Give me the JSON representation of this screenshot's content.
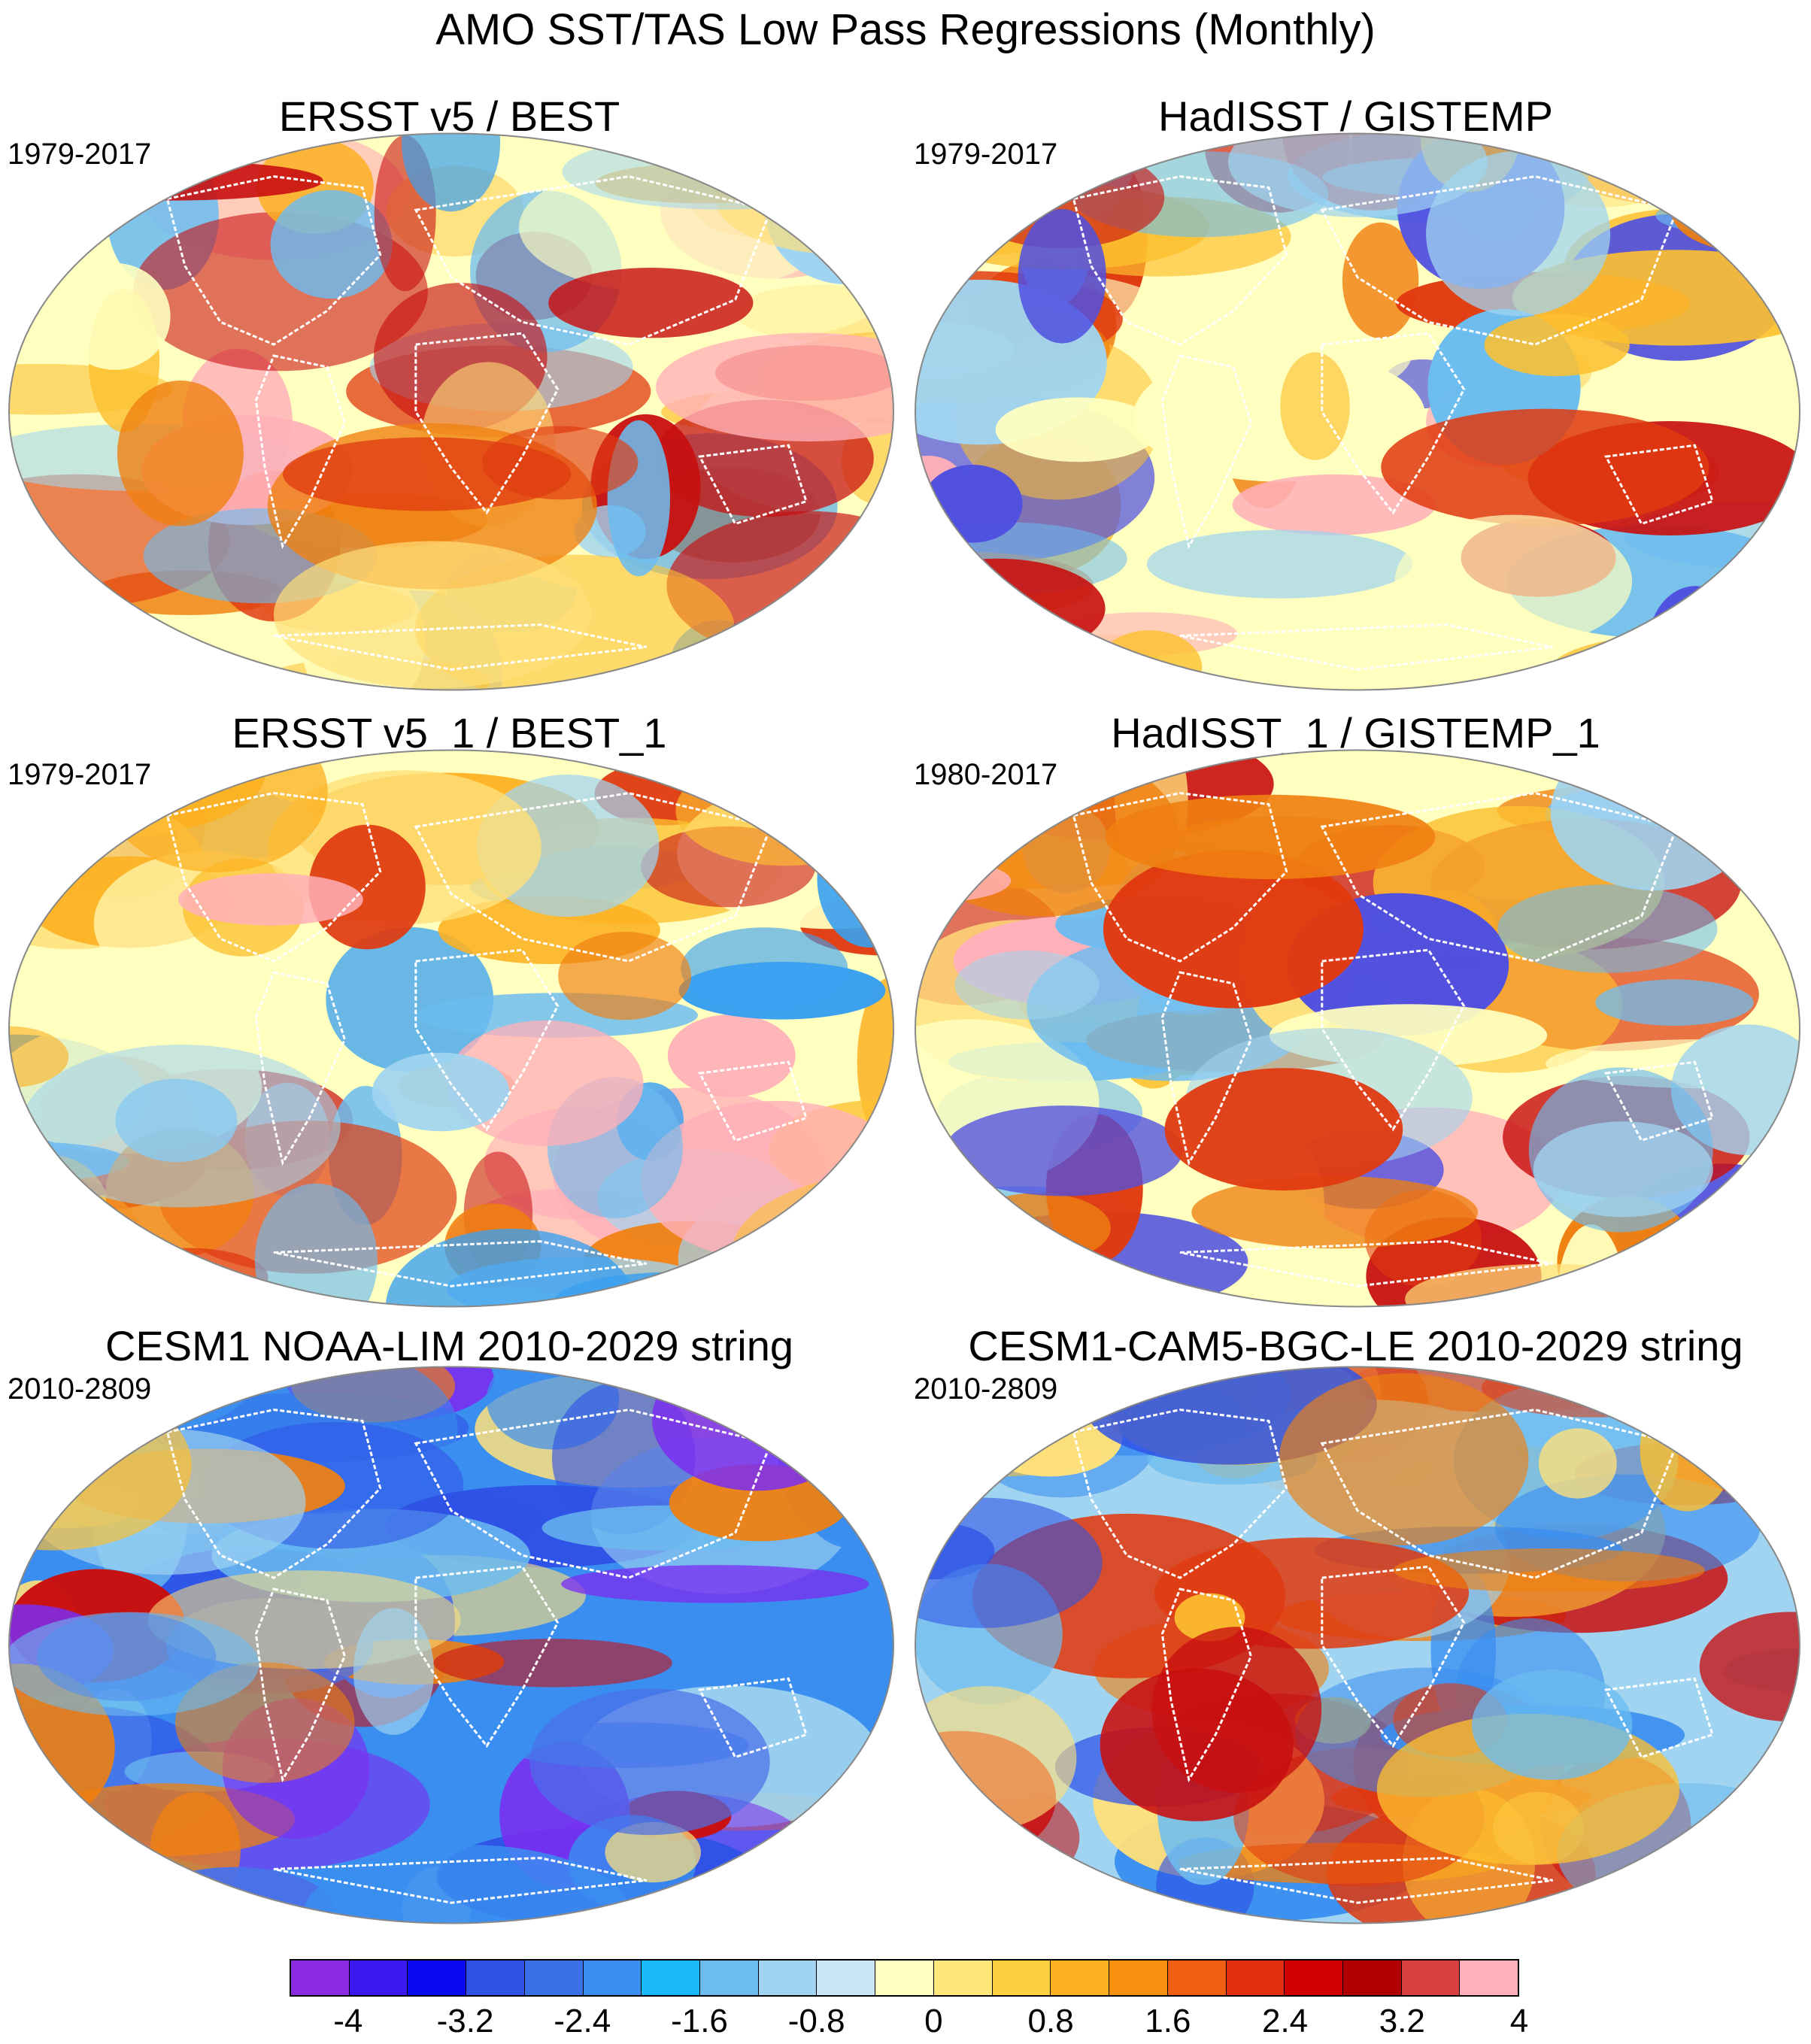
{
  "figure": {
    "title": "AMO SST/TAS Low Pass Regressions (Monthly)"
  },
  "panels": [
    {
      "title": "ERSST v5 / BEST",
      "period": "1979-2017",
      "palette": [
        "#ffffbf",
        "#ffe07a",
        "#fdc030",
        "#fdb020",
        "#f08010",
        "#e03a10",
        "#c81010",
        "#ffb0b8",
        "#a0d4f0",
        "#6cbcf0",
        "#3aa0f0",
        "#ffffff"
      ]
    },
    {
      "title": "HadISST / GISTEMP",
      "period": "1979-2017",
      "palette": [
        "#ffffbf",
        "#ffe07a",
        "#fdc030",
        "#f08010",
        "#e03a10",
        "#c81010",
        "#ffb0b8",
        "#a0d4f0",
        "#6cbcf0",
        "#5050e0",
        "#ffffff"
      ]
    },
    {
      "title": "ERSST v5_1 / BEST_1",
      "period": "1979-2017",
      "palette": [
        "#ffffbf",
        "#ffe07a",
        "#fdc030",
        "#fdb020",
        "#f08010",
        "#e03a10",
        "#c81010",
        "#ffb0b8",
        "#a0d4f0",
        "#6cbcf0",
        "#3aa0f0",
        "#ffffff"
      ]
    },
    {
      "title": "HadISST_1 / GISTEMP_1",
      "period": "1980-2017",
      "palette": [
        "#ffffbf",
        "#ffe07a",
        "#fdc030",
        "#f08010",
        "#e03a10",
        "#c81010",
        "#ffb0b8",
        "#a0d4f0",
        "#6cbcf0",
        "#5050e0",
        "#ffffff"
      ]
    },
    {
      "title": "CESM1 NOAA-LIM 2010-2029 string",
      "period": "2010-2809",
      "palette": [
        "#3a8ef0",
        "#4a70e8",
        "#2f52e6",
        "#7a2ef0",
        "#6cbcf0",
        "#a0d4f0",
        "#ffe07a",
        "#fdc030",
        "#f08010",
        "#c81010",
        "#ffffbf"
      ]
    },
    {
      "title": "CESM1-CAM5-BGC-LE 2010-2029 string",
      "period": "2010-2809",
      "palette": [
        "#a0d4f0",
        "#6cbcf0",
        "#3a8ef0",
        "#2f52e6",
        "#ffe07a",
        "#fdc030",
        "#f08010",
        "#e03a10",
        "#c81010",
        "#ffffbf"
      ]
    }
  ],
  "colorbar": {
    "colors": [
      "#8a2be2",
      "#3a1af0",
      "#0a0af0",
      "#2f52e6",
      "#3a70e8",
      "#3a8ef0",
      "#1ab8f5",
      "#6cbcf0",
      "#a0d4f0",
      "#c8e6f8",
      "#ffffbf",
      "#ffe87a",
      "#fdd040",
      "#fdb020",
      "#f89010",
      "#f06010",
      "#e03010",
      "#d00000",
      "#b00000",
      "#d84040",
      "#ffb0b8"
    ],
    "labels": [
      "-4",
      "-3.2",
      "-2.4",
      "-1.6",
      "-0.8",
      "0",
      "0.8",
      "1.6",
      "2.4",
      "3.2",
      "4"
    ]
  }
}
